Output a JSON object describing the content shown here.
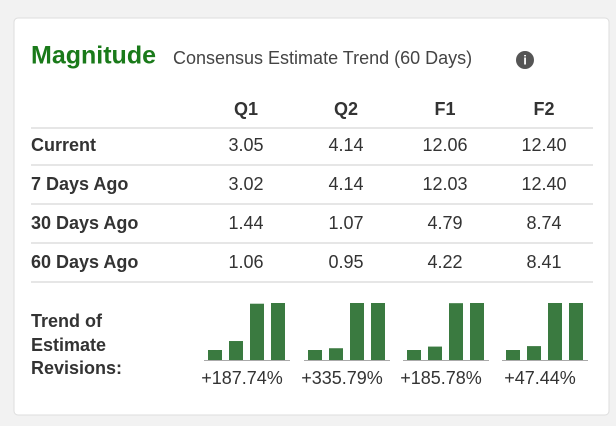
{
  "header": {
    "title": "Magnitude",
    "subtitle": "Consensus Estimate Trend (60 Days)"
  },
  "table": {
    "columns": [
      "Q1",
      "Q2",
      "F1",
      "F2"
    ],
    "rows": [
      {
        "label": "Current",
        "values": [
          "3.05",
          "4.14",
          "12.06",
          "12.40"
        ]
      },
      {
        "label": "7 Days Ago",
        "values": [
          "3.02",
          "4.14",
          "12.03",
          "12.40"
        ]
      },
      {
        "label": "30 Days Ago",
        "values": [
          "1.44",
          "1.07",
          "4.79",
          "8.74"
        ]
      },
      {
        "label": "60 Days Ago",
        "values": [
          "1.06",
          "0.95",
          "4.22",
          "8.41"
        ]
      }
    ]
  },
  "trend": {
    "label": "Trend of Estimate Revisions:",
    "values": [
      "+187.74%",
      "+335.79%",
      "+185.78%",
      "+47.44%"
    ]
  }
}
